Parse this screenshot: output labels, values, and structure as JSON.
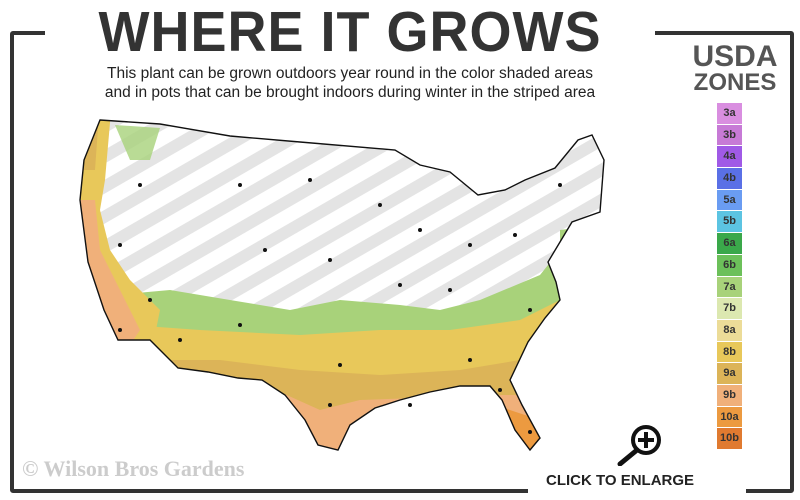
{
  "title": "WHERE IT GROWS",
  "subtitle_line1": "This plant can be grown outdoors year round in the color shaded areas",
  "subtitle_line2": "and in pots that can be brought indoors during winter in the striped area",
  "legend": {
    "title_line1": "USDA",
    "title_line2": "ZONES",
    "zones": [
      {
        "label": "3a",
        "color": "#d98ee0"
      },
      {
        "label": "3b",
        "color": "#c77ad6"
      },
      {
        "label": "4a",
        "color": "#a05ae6"
      },
      {
        "label": "4b",
        "color": "#5a70e6"
      },
      {
        "label": "5a",
        "color": "#6a9cf2"
      },
      {
        "label": "5b",
        "color": "#5cc4e2"
      },
      {
        "label": "6a",
        "color": "#3aa84a"
      },
      {
        "label": "6b",
        "color": "#6cc05a"
      },
      {
        "label": "7a",
        "color": "#a8d27a"
      },
      {
        "label": "7b",
        "color": "#dce8b0"
      },
      {
        "label": "8a",
        "color": "#ecdc98"
      },
      {
        "label": "8b",
        "color": "#e8c85a"
      },
      {
        "label": "9a",
        "color": "#dcb458"
      },
      {
        "label": "9b",
        "color": "#f0b07a"
      },
      {
        "label": "10a",
        "color": "#ec9a40"
      },
      {
        "label": "10b",
        "color": "#e07a30"
      }
    ]
  },
  "copyright": "© Wilson Bros Gardens",
  "enlarge_label": "CLICK TO ENLARGE",
  "icons": {
    "enlarge": "magnifier-plus-icon"
  }
}
